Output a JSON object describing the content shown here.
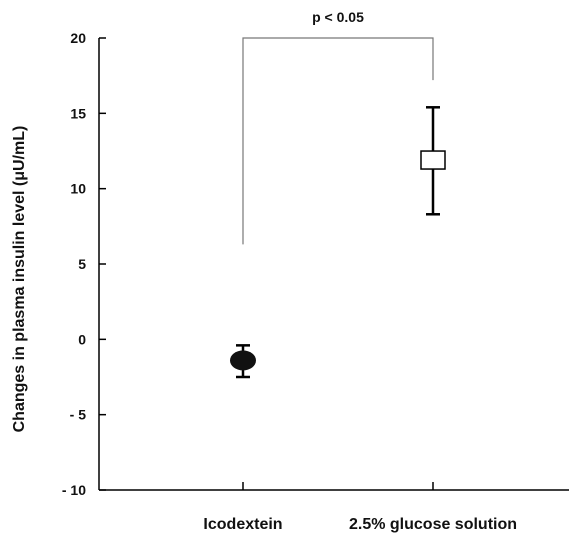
{
  "chart_data": {
    "type": "scatter",
    "title": "",
    "xlabel": "",
    "ylabel": "Changes in plasma insulin level (μU/mL)",
    "ylim": [
      -10,
      20
    ],
    "yticks": [
      20,
      15,
      10,
      5,
      0,
      -5,
      -10
    ],
    "ytick_labels": [
      "20",
      "15",
      "10",
      "5",
      "0",
      "- 5",
      "- 10"
    ],
    "categories": [
      "Icodextein",
      "2.5% glucose solution"
    ],
    "series": [
      {
        "points": [
          {
            "category": "Icodextein",
            "mean": -1.4,
            "err_low": -2.5,
            "err_high": -0.4,
            "marker": "filled-circle"
          },
          {
            "category": "2.5% glucose solution",
            "mean": 11.9,
            "err_low": 8.3,
            "err_high": 15.4,
            "marker": "open-square"
          }
        ]
      }
    ],
    "annotation": {
      "text": "p < 0.05",
      "from_category": "Icodextein",
      "to_category": "2.5% glucose solution",
      "left_bottom": 6.3,
      "right_bottom": 17.2,
      "top": 20
    },
    "grid": false,
    "legend": "none",
    "colors": {
      "axis": "#000000",
      "marker_fill_filled": "#111111",
      "marker_fill_open": "#ffffff",
      "bracket": "#777777"
    }
  }
}
